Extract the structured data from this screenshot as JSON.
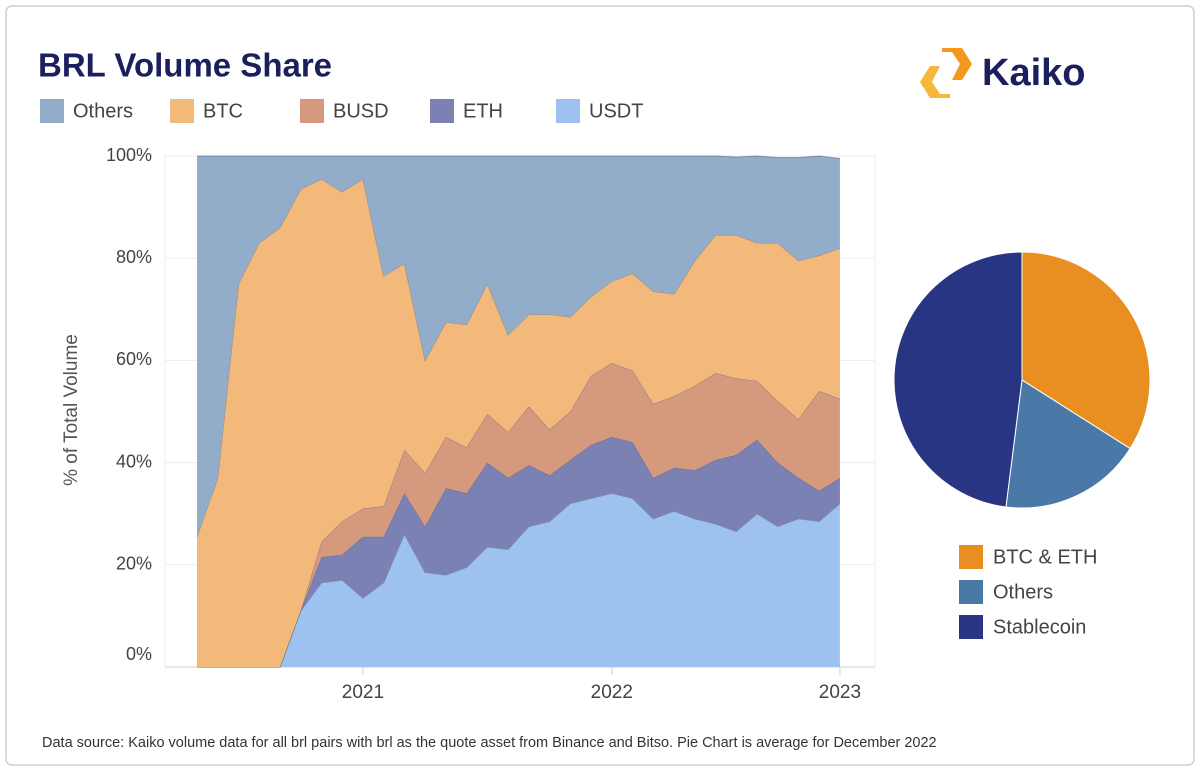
{
  "logo": "Kaiko",
  "source": "Data source: Kaiko volume data for all brl pairs with brl as the quote asset from Binance and Bitso. Pie Chart is average for December 2022",
  "chart_data": [
    {
      "type": "stacked-area",
      "title": "BRL Volume Share",
      "y_label": "% of Total Volume",
      "categories": [
        null,
        null,
        null,
        null,
        null,
        null,
        null,
        null,
        "2021",
        null,
        null,
        null,
        null,
        null,
        null,
        null,
        null,
        null,
        null,
        null,
        "2022",
        null,
        null,
        null,
        null,
        null,
        null,
        null,
        null,
        null,
        null,
        "2023"
      ],
      "ylim": [
        0,
        100
      ],
      "yticks": [
        {
          "value": 0,
          "label": "0%"
        },
        {
          "value": 20,
          "label": "20%"
        },
        {
          "value": 40,
          "label": "40%"
        },
        {
          "value": 60,
          "label": "60%"
        },
        {
          "value": 80,
          "label": "80%"
        },
        {
          "value": 100,
          "label": "100%"
        }
      ],
      "grid": true,
      "legend": "top",
      "series": [
        {
          "name": "USDT",
          "color": "#9ec2ef",
          "values": [
            0,
            0,
            0,
            0,
            0,
            11,
            16.5,
            17,
            13.5,
            16.5,
            26,
            18.5,
            18,
            19.5,
            23.5,
            23,
            27.5,
            28.5,
            32,
            33,
            34,
            33,
            29,
            30.5,
            29,
            28,
            26.5,
            30,
            27.5,
            29,
            28.5,
            32
          ]
        },
        {
          "name": "ETH",
          "color": "#7c81b4",
          "values": [
            0,
            0,
            0,
            0,
            0,
            0,
            5,
            5,
            12,
            9,
            8,
            9,
            17,
            14.5,
            16.5,
            14,
            12,
            9,
            8.5,
            10.5,
            11,
            11,
            8,
            8.5,
            9.5,
            12.5,
            15,
            14.5,
            12.5,
            8,
            6,
            5
          ]
        },
        {
          "name": "BUSD",
          "color": "#d59a7d",
          "values": [
            0,
            0,
            0,
            0,
            0,
            0,
            3,
            6.5,
            5.5,
            6,
            8.5,
            10.5,
            10,
            9,
            9.5,
            9,
            11.5,
            9,
            9.5,
            13.5,
            14.5,
            14,
            14.5,
            14,
            16.5,
            17,
            15,
            11.5,
            12,
            11.5,
            19.5,
            15.5
          ]
        },
        {
          "name": "BTC",
          "color": "#f3b97b",
          "values": [
            25.5,
            37,
            75,
            83,
            86,
            82.5,
            71,
            64.5,
            64.5,
            45,
            36.5,
            22,
            22.5,
            24,
            25.5,
            19,
            18,
            22.5,
            18.5,
            15.5,
            16,
            19,
            22,
            20,
            24.5,
            27,
            28,
            27,
            31,
            31,
            26.5,
            29.5
          ]
        },
        {
          "name": "Others",
          "color": "#91adc9",
          "values": [
            74.5,
            63,
            25,
            17,
            14,
            6.5,
            4.5,
            7,
            4.5,
            23.5,
            21,
            40,
            32.5,
            33,
            25,
            35,
            31,
            31,
            31.5,
            27.5,
            24.5,
            23,
            26.5,
            27,
            20.5,
            15.5,
            15.3,
            17,
            16.7,
            20.2,
            19.5,
            17.5
          ]
        }
      ]
    },
    {
      "type": "pie",
      "legend": "bottom",
      "categories": [
        "BTC & ETH",
        "Others",
        "Stablecoin"
      ],
      "values": [
        34,
        18,
        48
      ],
      "colors": [
        "#e98f22",
        "#4a79a8",
        "#283583"
      ]
    }
  ]
}
